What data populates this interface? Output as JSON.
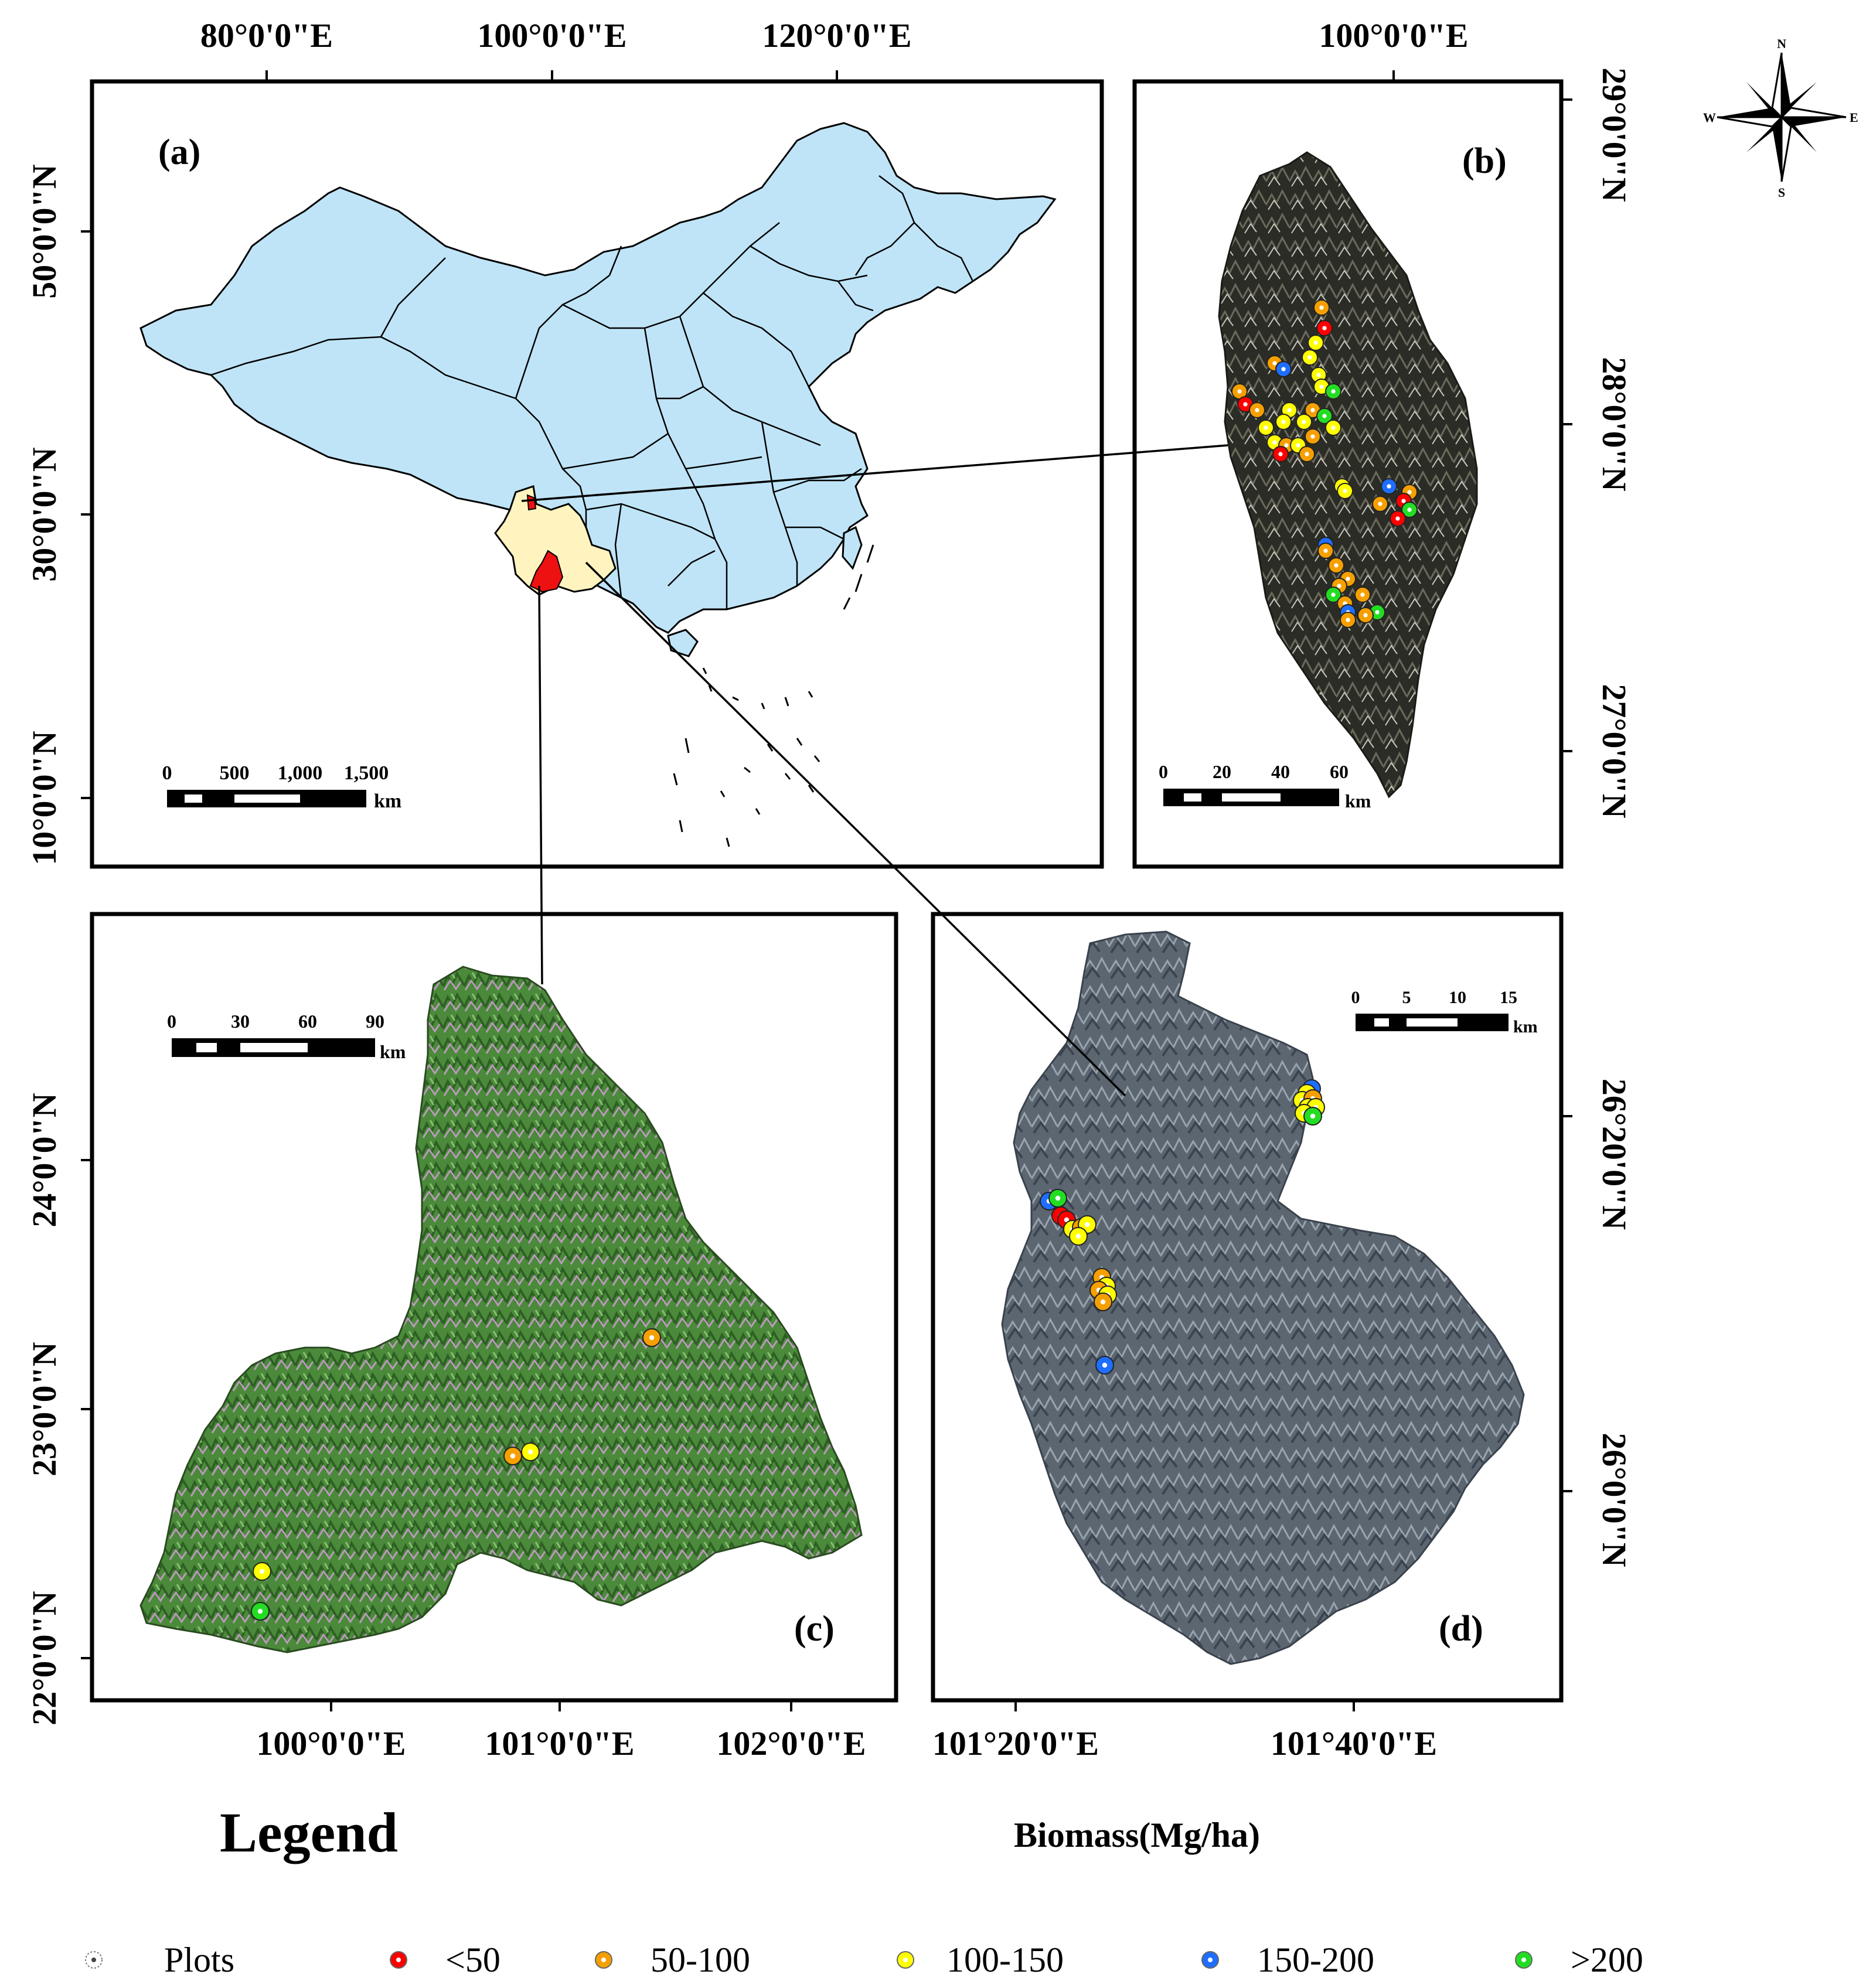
{
  "compass": {
    "n": "N",
    "s": "S",
    "e": "E",
    "w": "W"
  },
  "panels": {
    "a": {
      "label": "(a)",
      "top_axis": [
        "80°0'0\"E",
        "100°0'0\"E",
        "120°0'0\"E"
      ],
      "left_axis": [
        "50°0'0\"N",
        "30°0'0\"N",
        "10°0'0\"N"
      ],
      "scale_ticks": [
        "0",
        "500",
        "1,000",
        "1,500"
      ],
      "scale_unit": "km"
    },
    "b": {
      "label": "(b)",
      "top_axis": [
        "100°0'0\"E"
      ],
      "right_axis": [
        "29°0'0\"N",
        "28°0'0\"N",
        "27°0'0\"N"
      ],
      "scale_ticks": [
        "0",
        "20",
        "40",
        "60"
      ],
      "scale_unit": "km"
    },
    "c": {
      "label": "(c)",
      "bottom_axis": [
        "100°0'0\"E",
        "101°0'0\"E",
        "102°0'0\"E"
      ],
      "left_axis": [
        "24°0'0\"N",
        "23°0'0\"N",
        "22°0'0\"N"
      ],
      "scale_ticks": [
        "0",
        "30",
        "60",
        "90"
      ],
      "scale_unit": "km"
    },
    "d": {
      "label": "(d)",
      "bottom_axis": [
        "101°20'0\"E",
        "101°40'0\"E"
      ],
      "right_axis": [
        "26°20'0\"N",
        "26°0'0\"N"
      ],
      "scale_ticks": [
        "0",
        "5",
        "10",
        "15"
      ],
      "scale_unit": "km"
    }
  },
  "legend": {
    "title": "Legend",
    "subtitle": "Biomass(Mg/ha)",
    "items": [
      {
        "label": "Plots",
        "color": "#ffffff"
      },
      {
        "label": "<50",
        "color": "#ff0000"
      },
      {
        "label": "50-100",
        "color": "#f5a000"
      },
      {
        "label": "100-150",
        "color": "#ffff00"
      },
      {
        "label": "150-200",
        "color": "#1e6eff"
      },
      {
        "label": ">200",
        "color": "#22dd22"
      }
    ]
  },
  "colors": {
    "china_fill": "#bfe4f7",
    "yunnan_fill": "#fff4c0",
    "study_fill": "#ee1111",
    "panel_b_bg": "#2a2a24",
    "panel_c_bg": "#4e8a3c",
    "panel_d_bg": "#5c6670"
  }
}
